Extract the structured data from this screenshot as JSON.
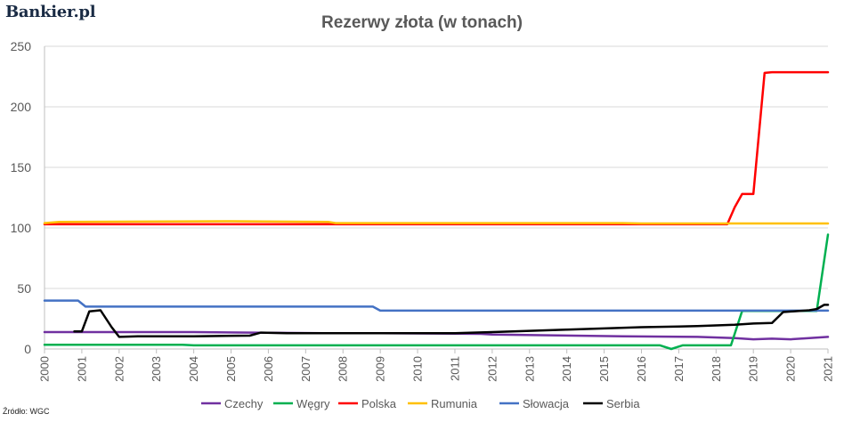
{
  "brand": {
    "logo_text": "Bankier.pl"
  },
  "source_note": "Źródło: WGC",
  "chart_data": {
    "type": "line",
    "title": "Rezerwy złota (w tonach)",
    "xlabel": "",
    "ylabel": "",
    "xlim": [
      2000,
      2021
    ],
    "ylim": [
      0,
      250
    ],
    "yticks": [
      0,
      50,
      100,
      150,
      200,
      250
    ],
    "xticks": [
      "2000",
      "2001",
      "2002",
      "2003",
      "2004",
      "2005",
      "2006",
      "2007",
      "2008",
      "2009",
      "2010",
      "2011",
      "2012",
      "2013",
      "2014",
      "2015",
      "2016",
      "2017",
      "2018",
      "2019",
      "2020",
      "2021"
    ],
    "grid": true,
    "legend_position": "bottom",
    "series": [
      {
        "name": "Czechy",
        "color": "#7030a0",
        "points": [
          [
            2000,
            14
          ],
          [
            2004,
            14
          ],
          [
            2007.5,
            13
          ],
          [
            2009,
            13
          ],
          [
            2011.7,
            12.5
          ],
          [
            2012,
            12
          ],
          [
            2015.5,
            10.5
          ],
          [
            2017.5,
            10
          ],
          [
            2018.5,
            9
          ],
          [
            2019,
            8
          ],
          [
            2019.5,
            8.5
          ],
          [
            2020,
            8
          ],
          [
            2020.5,
            9
          ],
          [
            2021,
            10
          ]
        ]
      },
      {
        "name": "Węgry",
        "color": "#00b050",
        "points": [
          [
            2000,
            3.5
          ],
          [
            2003.7,
            3.5
          ],
          [
            2004,
            3
          ],
          [
            2016.5,
            3
          ],
          [
            2016.8,
            0
          ],
          [
            2017.1,
            3
          ],
          [
            2018.4,
            3
          ],
          [
            2018.7,
            31.5
          ],
          [
            2020.7,
            31.5
          ],
          [
            2021,
            94.5
          ]
        ]
      },
      {
        "name": "Polska",
        "color": "#ff0000",
        "points": [
          [
            2000,
            103
          ],
          [
            2018.3,
            103
          ],
          [
            2018.5,
            117
          ],
          [
            2018.7,
            128
          ],
          [
            2019,
            128
          ],
          [
            2019.3,
            228
          ],
          [
            2019.5,
            228.6
          ],
          [
            2021,
            228.6
          ]
        ]
      },
      {
        "name": "Rumunia",
        "color": "#ffc000",
        "points": [
          [
            2000,
            104
          ],
          [
            2000.4,
            105
          ],
          [
            2005,
            105.5
          ],
          [
            2007.6,
            105
          ],
          [
            2007.8,
            104
          ],
          [
            2015.5,
            104
          ],
          [
            2016,
            103.7
          ],
          [
            2021,
            103.7
          ]
        ]
      },
      {
        "name": "Słowacja",
        "color": "#4472c4",
        "points": [
          [
            2000,
            40
          ],
          [
            2000.9,
            40
          ],
          [
            2001.1,
            35
          ],
          [
            2008.8,
            35
          ],
          [
            2009,
            31.7
          ],
          [
            2021,
            31.7
          ]
        ]
      },
      {
        "name": "Serbia",
        "color": "#000000",
        "points": [
          [
            2000.8,
            14.5
          ],
          [
            2001,
            14.5
          ],
          [
            2001.2,
            31
          ],
          [
            2001.5,
            32
          ],
          [
            2001.8,
            18
          ],
          [
            2002,
            10
          ],
          [
            2002.5,
            10.5
          ],
          [
            2004,
            10.5
          ],
          [
            2005.5,
            11
          ],
          [
            2005.8,
            13.5
          ],
          [
            2006.5,
            13
          ],
          [
            2009,
            13
          ],
          [
            2011,
            13
          ],
          [
            2012,
            14
          ],
          [
            2013,
            15
          ],
          [
            2014,
            16
          ],
          [
            2015,
            17
          ],
          [
            2016,
            18
          ],
          [
            2017,
            18.5
          ],
          [
            2017.5,
            19
          ],
          [
            2018.5,
            20
          ],
          [
            2019,
            21
          ],
          [
            2019.5,
            21.5
          ],
          [
            2019.8,
            30.5
          ],
          [
            2020.5,
            32
          ],
          [
            2020.7,
            33
          ],
          [
            2020.9,
            36.5
          ],
          [
            2021,
            36.5
          ]
        ]
      }
    ]
  }
}
